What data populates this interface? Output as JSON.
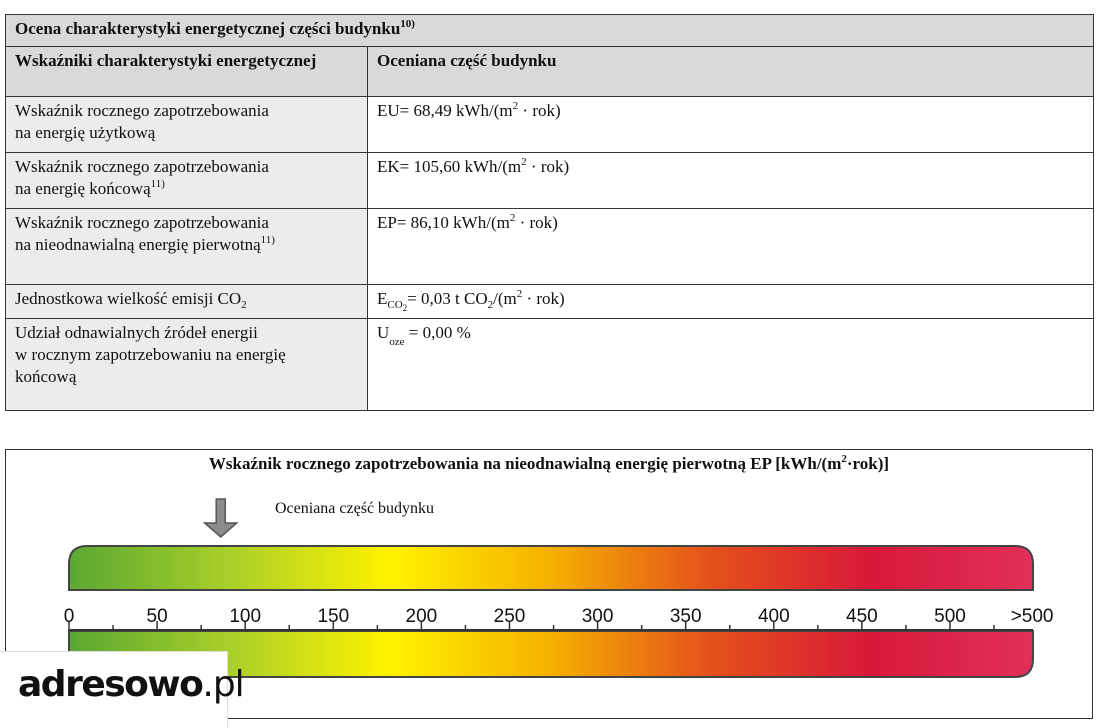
{
  "table": {
    "title": "Ocena charakterystyki energetycznej części budynku",
    "title_sup": "10)",
    "header_left": "Wskaźniki charakterystyki energetycznej",
    "header_right": "Oceniana część budynku",
    "rows": [
      {
        "label_line1": "Wskaźnik rocznego zapotrzebowania",
        "label_line2": "na energię użytkową",
        "label_sup": "",
        "value_prefix": "EU= 68,49 kWh/(m",
        "value_sup": "2",
        "value_suffix": " · rok)"
      },
      {
        "label_line1": "Wskaźnik rocznego zapotrzebowania",
        "label_line2": "na energię końcową",
        "label_sup": "11)",
        "value_prefix": "EK= 105,60 kWh/(m",
        "value_sup": "2",
        "value_suffix": " · rok)"
      },
      {
        "label_line1": "Wskaźnik rocznego zapotrzebowania",
        "label_line2": "na nieodnawialną energię pierwotną",
        "label_sup": "11)",
        "value_prefix": "EP= 86,10 kWh/(m",
        "value_sup": "2",
        "value_suffix": " · rok)"
      }
    ],
    "co2_row": {
      "label": "Jednostkowa wielkość emisji CO",
      "label_sub": "2",
      "value_symbol": "E",
      "value_sub": "CO",
      "value_sub_sub": "2",
      "value_mid": "= 0,03 t CO",
      "value_mid_sub": "2",
      "value_tail": "/(m",
      "value_sup": "2",
      "value_suffix": " · rok)"
    },
    "oze_row": {
      "label_line1": "Udział odnawialnych źródeł energii",
      "label_line2": "w rocznym zapotrzebowaniu na energię",
      "label_line3": "końcową",
      "value_symbol": "U",
      "value_sub": "oze",
      "value_suffix": " = 0,00 %"
    }
  },
  "scale": {
    "title_prefix": "Wskaźnik rocznego zapotrzebowania na nieodnawialną energię pierwotną EP [kWh/(m",
    "title_sup": "2",
    "title_suffix": "·rok)]",
    "marker_label": "Oceniana część budynku",
    "marker_value": 86.1,
    "range": [
      0,
      550
    ],
    "tick_labels": [
      "0",
      "50",
      "100",
      "150",
      "200",
      "250",
      "300",
      "350",
      "400",
      "450",
      "500",
      ">500"
    ],
    "colors": [
      "#5aa832",
      "#a9cf2a",
      "#fff200",
      "#f5b000",
      "#e4501a",
      "#d8183a",
      "#e0305a"
    ]
  },
  "logo": {
    "text_main": "adresowo",
    "text_tld": ".pl"
  }
}
